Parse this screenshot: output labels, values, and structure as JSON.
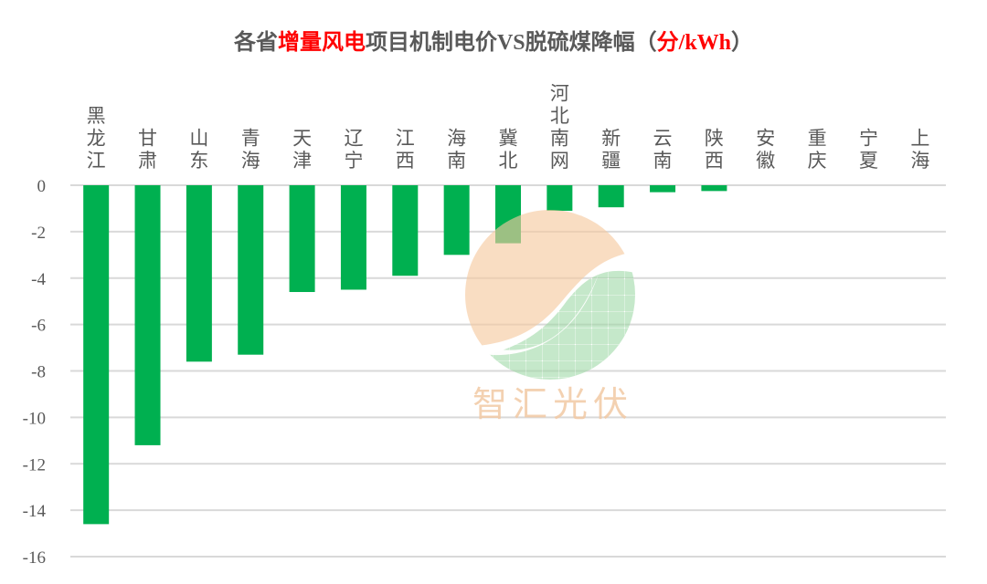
{
  "title": {
    "part1": "各省",
    "highlight1": "增量风电",
    "part2": "项目机制电价",
    "latin1": "VS",
    "part3": "脱硫煤降幅",
    "open_paren": "（",
    "highlight2": "分",
    "unit": "/kWh",
    "close_paren": "）"
  },
  "colors": {
    "bar": "#00b050",
    "grid": "#d9d9d9",
    "text": "#595959",
    "title_highlight": "#ff0000",
    "watermark_orange": "#f5c9a0",
    "watermark_green": "#a8dcae"
  },
  "watermark": {
    "text": "智汇光伏"
  },
  "chart_data": {
    "type": "bar",
    "title": "各省增量风电项目机制电价VS脱硫煤降幅（分/kWh）",
    "xlabel": "",
    "ylabel": "",
    "categories": [
      "黑龙江",
      "甘肃",
      "山东",
      "青海",
      "天津",
      "辽宁",
      "江西",
      "海南",
      "冀北",
      "河北南网",
      "新疆",
      "云南",
      "陕西",
      "安徽",
      "重庆",
      "宁夏",
      "上海"
    ],
    "values": [
      -14.6,
      -11.2,
      -7.6,
      -7.3,
      -4.6,
      -4.5,
      -3.9,
      -3.0,
      -2.5,
      -1.1,
      -0.95,
      -0.3,
      -0.25,
      0,
      0,
      0,
      0
    ],
    "ylim": [
      -16,
      0
    ],
    "yticks": [
      0,
      -2,
      -4,
      -6,
      -8,
      -10,
      -12,
      -14,
      -16
    ],
    "grid": true,
    "legend": null,
    "x_labels_position": "top, vertical stacked characters"
  }
}
